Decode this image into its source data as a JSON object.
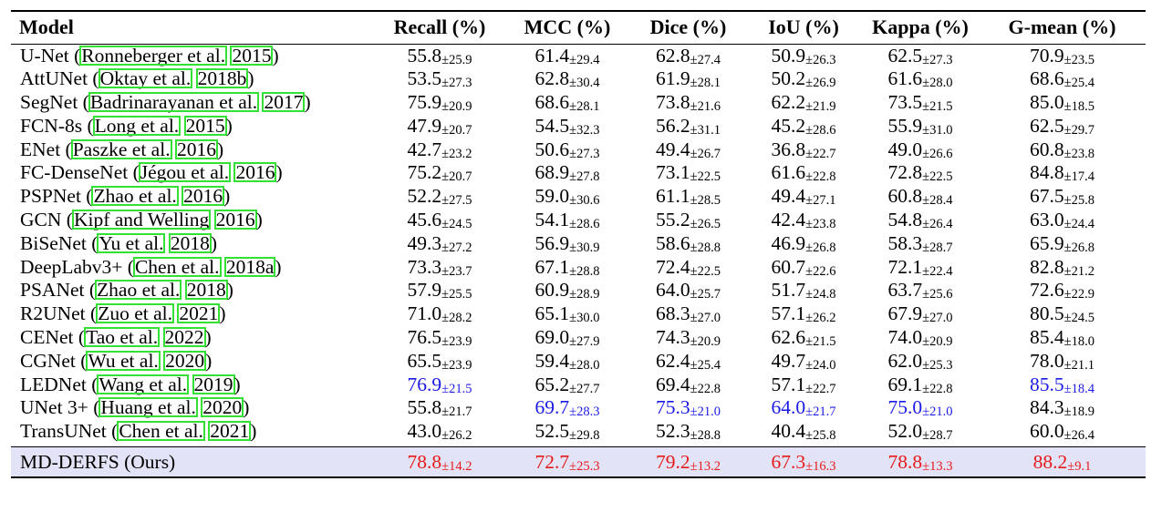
{
  "headers": [
    "Model",
    "Recall (%)",
    "MCC (%)",
    "Dice (%)",
    "IoU (%)",
    "Kappa (%)",
    "G-mean (%)"
  ],
  "highlight_colors": {
    "blue": "#1a1ae6",
    "red": "#e61a1a",
    "citation_box": "#33e033",
    "ours_row_bg": "#e2e3f6"
  },
  "rows": [
    {
      "name": "U-Net (",
      "cite": [
        "Ronneberger et al.",
        "2015"
      ],
      "close": ")",
      "cells": [
        [
          "55.8",
          "±25.9"
        ],
        [
          "61.4",
          "±29.4"
        ],
        [
          "62.8",
          "±27.4"
        ],
        [
          "50.9",
          "±26.3"
        ],
        [
          "62.5",
          "±27.3"
        ],
        [
          "70.9",
          "±23.5"
        ]
      ]
    },
    {
      "name": "AttUNet (",
      "cite": [
        "Oktay et al.",
        "2018b"
      ],
      "close": ")",
      "cells": [
        [
          "53.5",
          "±27.3"
        ],
        [
          "62.8",
          "±30.4"
        ],
        [
          "61.9",
          "±28.1"
        ],
        [
          "50.2",
          "±26.9"
        ],
        [
          "61.6",
          "±28.0"
        ],
        [
          "68.6",
          "±25.4"
        ]
      ]
    },
    {
      "name": "SegNet (",
      "cite": [
        "Badrinarayanan et al.",
        "2017"
      ],
      "close": ")",
      "cells": [
        [
          "75.9",
          "±20.9"
        ],
        [
          "68.6",
          "±28.1"
        ],
        [
          "73.8",
          "±21.6"
        ],
        [
          "62.2",
          "±21.9"
        ],
        [
          "73.5",
          "±21.5"
        ],
        [
          "85.0",
          "±18.5"
        ]
      ]
    },
    {
      "name": "FCN-8s (",
      "cite": [
        "Long et al.",
        "2015"
      ],
      "close": ")",
      "cells": [
        [
          "47.9",
          "±20.7"
        ],
        [
          "54.5",
          "±32.3"
        ],
        [
          "56.2",
          "±31.1"
        ],
        [
          "45.2",
          "±28.6"
        ],
        [
          "55.9",
          "±31.0"
        ],
        [
          "62.5",
          "±29.7"
        ]
      ]
    },
    {
      "name": "ENet (",
      "cite": [
        "Paszke et al.",
        "2016"
      ],
      "close": ")",
      "cells": [
        [
          "42.7",
          "±23.2"
        ],
        [
          "50.6",
          "±27.3"
        ],
        [
          "49.4",
          "±26.7"
        ],
        [
          "36.8",
          "±22.7"
        ],
        [
          "49.0",
          "±26.6"
        ],
        [
          "60.8",
          "±23.8"
        ]
      ]
    },
    {
      "name": "FC-DenseNet (",
      "cite": [
        "Jégou et al.",
        "2016"
      ],
      "close": ")",
      "cells": [
        [
          "75.2",
          "±20.7"
        ],
        [
          "68.9",
          "±27.8"
        ],
        [
          "73.1",
          "±22.5"
        ],
        [
          "61.6",
          "±22.8"
        ],
        [
          "72.8",
          "±22.5"
        ],
        [
          "84.8",
          "±17.4"
        ]
      ]
    },
    {
      "name": "PSPNet (",
      "cite": [
        "Zhao et al.",
        "2016"
      ],
      "close": ")",
      "cells": [
        [
          "52.2",
          "±27.5"
        ],
        [
          "59.0",
          "±30.6"
        ],
        [
          "61.1",
          "±28.5"
        ],
        [
          "49.4",
          "±27.1"
        ],
        [
          "60.8",
          "±28.4"
        ],
        [
          "67.5",
          "±25.8"
        ]
      ]
    },
    {
      "name": "GCN (",
      "cite": [
        "Kipf and Welling",
        "2016"
      ],
      "close": ")",
      "cells": [
        [
          "45.6",
          "±24.5"
        ],
        [
          "54.1",
          "±28.6"
        ],
        [
          "55.2",
          "±26.5"
        ],
        [
          "42.4",
          "±23.8"
        ],
        [
          "54.8",
          "±26.4"
        ],
        [
          "63.0",
          "±24.4"
        ]
      ]
    },
    {
      "name": "BiSeNet (",
      "cite": [
        "Yu et al.",
        "2018"
      ],
      "close": ")",
      "cells": [
        [
          "49.3",
          "±27.2"
        ],
        [
          "56.9",
          "±30.9"
        ],
        [
          "58.6",
          "±28.8"
        ],
        [
          "46.9",
          "±26.8"
        ],
        [
          "58.3",
          "±28.7"
        ],
        [
          "65.9",
          "±26.8"
        ]
      ]
    },
    {
      "name": "DeepLabv3+ (",
      "cite": [
        "Chen et al.",
        "2018a"
      ],
      "close": ")",
      "cells": [
        [
          "73.3",
          "±23.7"
        ],
        [
          "67.1",
          "±28.8"
        ],
        [
          "72.4",
          "±22.5"
        ],
        [
          "60.7",
          "±22.6"
        ],
        [
          "72.1",
          "±22.4"
        ],
        [
          "82.8",
          "±21.2"
        ]
      ]
    },
    {
      "name": "PSANet (",
      "cite": [
        "Zhao et al.",
        "2018"
      ],
      "close": ")",
      "cells": [
        [
          "57.9",
          "±25.5"
        ],
        [
          "60.9",
          "±28.9"
        ],
        [
          "64.0",
          "±25.7"
        ],
        [
          "51.7",
          "±24.8"
        ],
        [
          "63.7",
          "±25.6"
        ],
        [
          "72.6",
          "±22.9"
        ]
      ]
    },
    {
      "name": "R2UNet (",
      "cite": [
        "Zuo et al.",
        "2021"
      ],
      "close": ")",
      "cells": [
        [
          "71.0",
          "±28.2"
        ],
        [
          "65.1",
          "±30.0"
        ],
        [
          "68.3",
          "±27.0"
        ],
        [
          "57.1",
          "±26.2"
        ],
        [
          "67.9",
          "±27.0"
        ],
        [
          "80.5",
          "±24.5"
        ]
      ]
    },
    {
      "name": "CENet (",
      "cite": [
        "Tao et al.",
        "2022"
      ],
      "close": ")",
      "cells": [
        [
          "76.5",
          "±23.9"
        ],
        [
          "69.0",
          "±27.9"
        ],
        [
          "74.3",
          "±20.9"
        ],
        [
          "62.6",
          "±21.5"
        ],
        [
          "74.0",
          "±20.9"
        ],
        [
          "85.4",
          "±18.0"
        ]
      ]
    },
    {
      "name": "CGNet (",
      "cite": [
        "Wu et al.",
        "2020"
      ],
      "close": ")",
      "cells": [
        [
          "65.5",
          "±23.9"
        ],
        [
          "59.4",
          "±28.0"
        ],
        [
          "62.4",
          "±25.4"
        ],
        [
          "49.7",
          "±24.0"
        ],
        [
          "62.0",
          "±25.3"
        ],
        [
          "78.0",
          "±21.1"
        ]
      ]
    },
    {
      "name": "LEDNet (",
      "cite": [
        "Wang et al.",
        "2019"
      ],
      "close": ")",
      "cells": [
        [
          "76.9",
          "±21.5"
        ],
        [
          "65.2",
          "±27.7"
        ],
        [
          "69.4",
          "±22.8"
        ],
        [
          "57.1",
          "±22.7"
        ],
        [
          "69.1",
          "±22.8"
        ],
        [
          "85.5",
          "±18.4"
        ]
      ]
    },
    {
      "name": "UNet 3+ (",
      "cite": [
        "Huang et al.",
        "2020"
      ],
      "close": ")",
      "cells": [
        [
          "55.8",
          "±21.7"
        ],
        [
          "69.7",
          "±28.3"
        ],
        [
          "75.3",
          "±21.0"
        ],
        [
          "64.0",
          "±21.7"
        ],
        [
          "75.0",
          "±21.0"
        ],
        [
          "84.3",
          "±18.9"
        ]
      ]
    },
    {
      "name": "TransUNet (",
      "cite": [
        "Chen et al.",
        "2021"
      ],
      "close": ")",
      "cells": [
        [
          "43.0",
          "±26.2"
        ],
        [
          "52.5",
          "±29.8"
        ],
        [
          "52.3",
          "±28.8"
        ],
        [
          "40.4",
          "±25.8"
        ],
        [
          "52.0",
          "±28.7"
        ],
        [
          "60.0",
          "±26.4"
        ]
      ]
    }
  ],
  "blue_cells": [
    [
      14,
      0
    ],
    [
      14,
      5
    ],
    [
      15,
      1
    ],
    [
      15,
      2
    ],
    [
      15,
      3
    ],
    [
      15,
      4
    ]
  ],
  "ours": {
    "name": "MD-DERFS (Ours)",
    "cells": [
      [
        "78.8",
        "±14.2"
      ],
      [
        "72.7",
        "±25.3"
      ],
      [
        "79.2",
        "±13.2"
      ],
      [
        "67.3",
        "±16.3"
      ],
      [
        "78.8",
        "±13.3"
      ],
      [
        "88.2",
        "±9.1"
      ]
    ]
  }
}
